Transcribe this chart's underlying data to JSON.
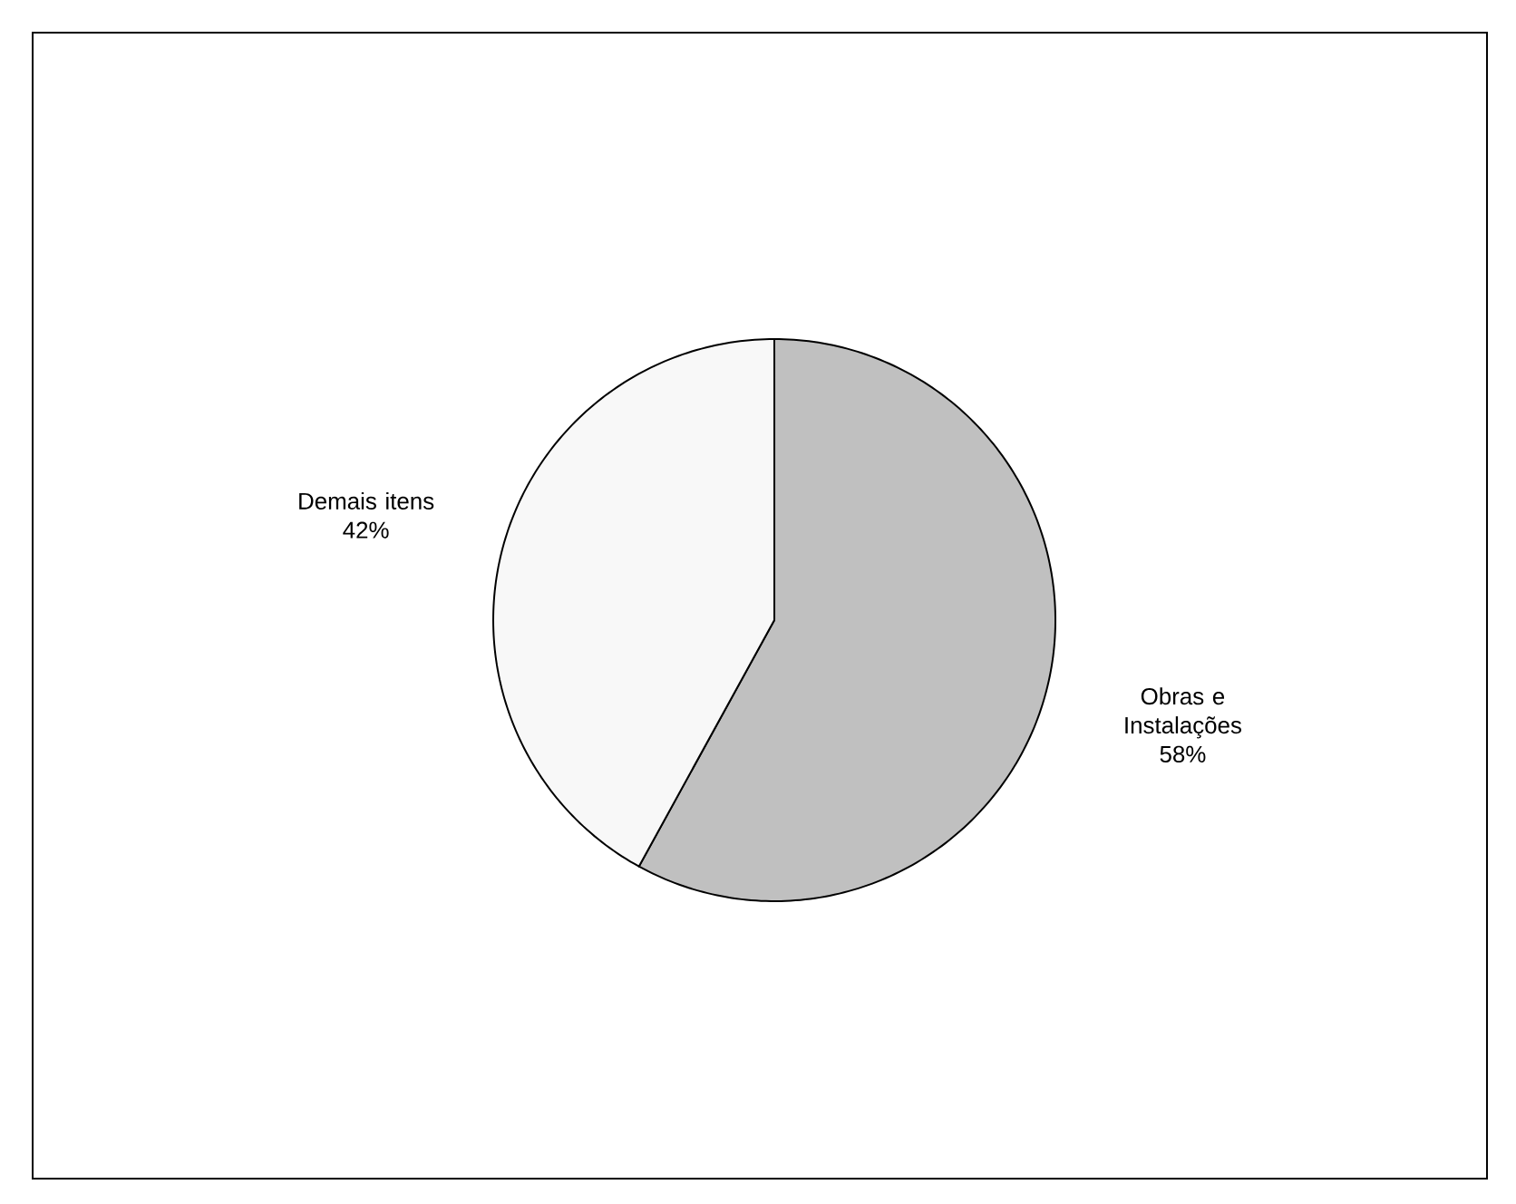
{
  "chart_data": {
    "type": "pie",
    "categories": [
      "Obras e Instalações",
      "Demais itens"
    ],
    "values": [
      58,
      42
    ],
    "colors": [
      "#c0c0c0",
      "#f8f8f8"
    ],
    "value_labels": [
      "58%",
      "42%"
    ]
  }
}
